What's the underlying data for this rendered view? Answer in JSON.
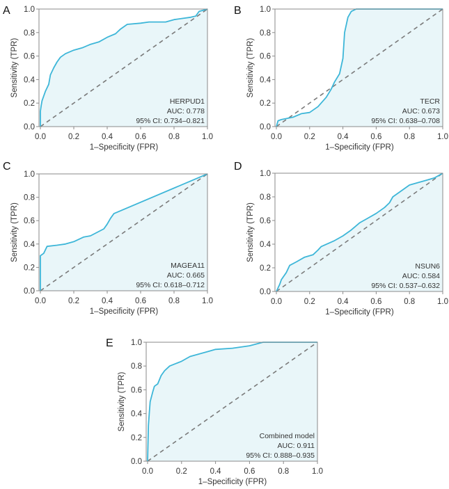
{
  "chart_data": [
    {
      "type": "line",
      "panel": "A",
      "title": "HERPUD1",
      "auc_label": "AUC: 0.778",
      "ci_label": "95% CI: 0.734–0.821",
      "xlabel": "1–Specificity (FPR)",
      "ylabel": "Sensitivity (TPR)",
      "xlim": [
        0,
        1
      ],
      "ylim": [
        0,
        1
      ],
      "xticks": [
        "0.0",
        "0.2",
        "0.4",
        "0.6",
        "0.8",
        "1.0"
      ],
      "yticks": [
        "0.0",
        "0.2",
        "0.4",
        "0.6",
        "0.8",
        "1.0"
      ],
      "x": [
        0,
        0,
        0.005,
        0.01,
        0.02,
        0.03,
        0.04,
        0.05,
        0.06,
        0.08,
        0.1,
        0.12,
        0.15,
        0.2,
        0.25,
        0.3,
        0.35,
        0.4,
        0.45,
        0.48,
        0.52,
        0.6,
        0.65,
        0.75,
        0.8,
        0.85,
        0.9,
        0.93,
        0.95,
        1
      ],
      "y": [
        0,
        0.13,
        0.18,
        0.22,
        0.26,
        0.3,
        0.33,
        0.36,
        0.44,
        0.5,
        0.55,
        0.59,
        0.62,
        0.65,
        0.67,
        0.7,
        0.72,
        0.76,
        0.79,
        0.83,
        0.87,
        0.88,
        0.89,
        0.89,
        0.91,
        0.92,
        0.93,
        0.94,
        0.98,
        1
      ]
    },
    {
      "type": "line",
      "panel": "B",
      "title": "TECR",
      "auc_label": "AUC: 0.673",
      "ci_label": "95% CI: 0.638–0.708",
      "xlabel": "1–Specificity (FPR)",
      "ylabel": "Sensitivity (TPR)",
      "xlim": [
        0,
        1
      ],
      "ylim": [
        0,
        1
      ],
      "xticks": [
        "0.0",
        "0.2",
        "0.4",
        "0.6",
        "0.8",
        "1.0"
      ],
      "yticks": [
        "0.0",
        "0.2",
        "0.4",
        "0.6",
        "0.8",
        "1.0"
      ],
      "x": [
        0,
        0.01,
        0.03,
        0.1,
        0.15,
        0.2,
        0.25,
        0.3,
        0.33,
        0.35,
        0.38,
        0.4,
        0.41,
        0.43,
        0.45,
        0.48,
        1
      ],
      "y": [
        0,
        0.05,
        0.06,
        0.08,
        0.11,
        0.12,
        0.17,
        0.25,
        0.32,
        0.38,
        0.45,
        0.58,
        0.8,
        0.93,
        0.98,
        1,
        1
      ]
    },
    {
      "type": "line",
      "panel": "C",
      "title": "MAGEA11",
      "auc_label": "AUC: 0.665",
      "ci_label": "95% CI: 0.618–0.712",
      "xlabel": "1–Specificity (FPR)",
      "ylabel": "Sensitivity (TPR)",
      "xlim": [
        0,
        1
      ],
      "ylim": [
        0,
        1
      ],
      "xticks": [
        "0.0",
        "0.2",
        "0.4",
        "0.6",
        "0.8",
        "1.0"
      ],
      "yticks": [
        "0.0",
        "0.2",
        "0.4",
        "0.6",
        "0.8",
        "1.0"
      ],
      "x": [
        0,
        0,
        0.02,
        0.03,
        0.04,
        0.1,
        0.15,
        0.2,
        0.26,
        0.3,
        0.38,
        0.4,
        0.42,
        0.44,
        1
      ],
      "y": [
        0,
        0.3,
        0.32,
        0.35,
        0.38,
        0.39,
        0.4,
        0.42,
        0.46,
        0.47,
        0.53,
        0.57,
        0.62,
        0.66,
        1
      ]
    },
    {
      "type": "line",
      "panel": "D",
      "title": "NSUN6",
      "auc_label": "AUC: 0.584",
      "ci_label": "95% CI: 0.537–0.632",
      "xlabel": "1–Specificity (FPR)",
      "ylabel": "Sensitivity (TPR)",
      "xlim": [
        0,
        1
      ],
      "ylim": [
        0,
        1
      ],
      "xticks": [
        "0.0",
        "0.2",
        "0.4",
        "0.6",
        "0.8",
        "1.0"
      ],
      "yticks": [
        "0.0",
        "0.2",
        "0.4",
        "0.6",
        "0.8",
        "1.0"
      ],
      "x": [
        0,
        0.02,
        0.03,
        0.06,
        0.08,
        0.12,
        0.17,
        0.22,
        0.25,
        0.27,
        0.35,
        0.4,
        0.45,
        0.5,
        0.55,
        0.6,
        0.65,
        0.68,
        0.7,
        0.75,
        0.8,
        0.85,
        0.9,
        0.95,
        1
      ],
      "y": [
        0,
        0.06,
        0.1,
        0.16,
        0.22,
        0.25,
        0.29,
        0.31,
        0.35,
        0.38,
        0.43,
        0.47,
        0.52,
        0.58,
        0.62,
        0.66,
        0.71,
        0.75,
        0.8,
        0.85,
        0.9,
        0.92,
        0.94,
        0.96,
        1
      ]
    },
    {
      "type": "line",
      "panel": "E",
      "title": "Combined model",
      "auc_label": "AUC: 0.911",
      "ci_label": "95% CI: 0.888–0.935",
      "xlabel": "1–Specificity (FPR)",
      "ylabel": "Sensitivity (TPR)",
      "xlim": [
        0,
        1
      ],
      "ylim": [
        0,
        1
      ],
      "xticks": [
        "0.0",
        "0.2",
        "0.4",
        "0.6",
        "0.8",
        "1.0"
      ],
      "yticks": [
        "0.0",
        "0.2",
        "0.4",
        "0.6",
        "0.8",
        "1.0"
      ],
      "x": [
        0,
        0.005,
        0.01,
        0.015,
        0.03,
        0.04,
        0.06,
        0.08,
        0.1,
        0.13,
        0.2,
        0.25,
        0.3,
        0.35,
        0.4,
        0.5,
        0.6,
        0.68,
        1
      ],
      "y": [
        0,
        0.3,
        0.4,
        0.5,
        0.58,
        0.63,
        0.65,
        0.72,
        0.76,
        0.8,
        0.84,
        0.88,
        0.9,
        0.92,
        0.94,
        0.95,
        0.97,
        1,
        1
      ]
    }
  ],
  "colors": {
    "curve": "#3db6d8",
    "fill": "#e9f6f9",
    "diagonal": "#7a7a7a",
    "frame": "#8a8a8a"
  }
}
